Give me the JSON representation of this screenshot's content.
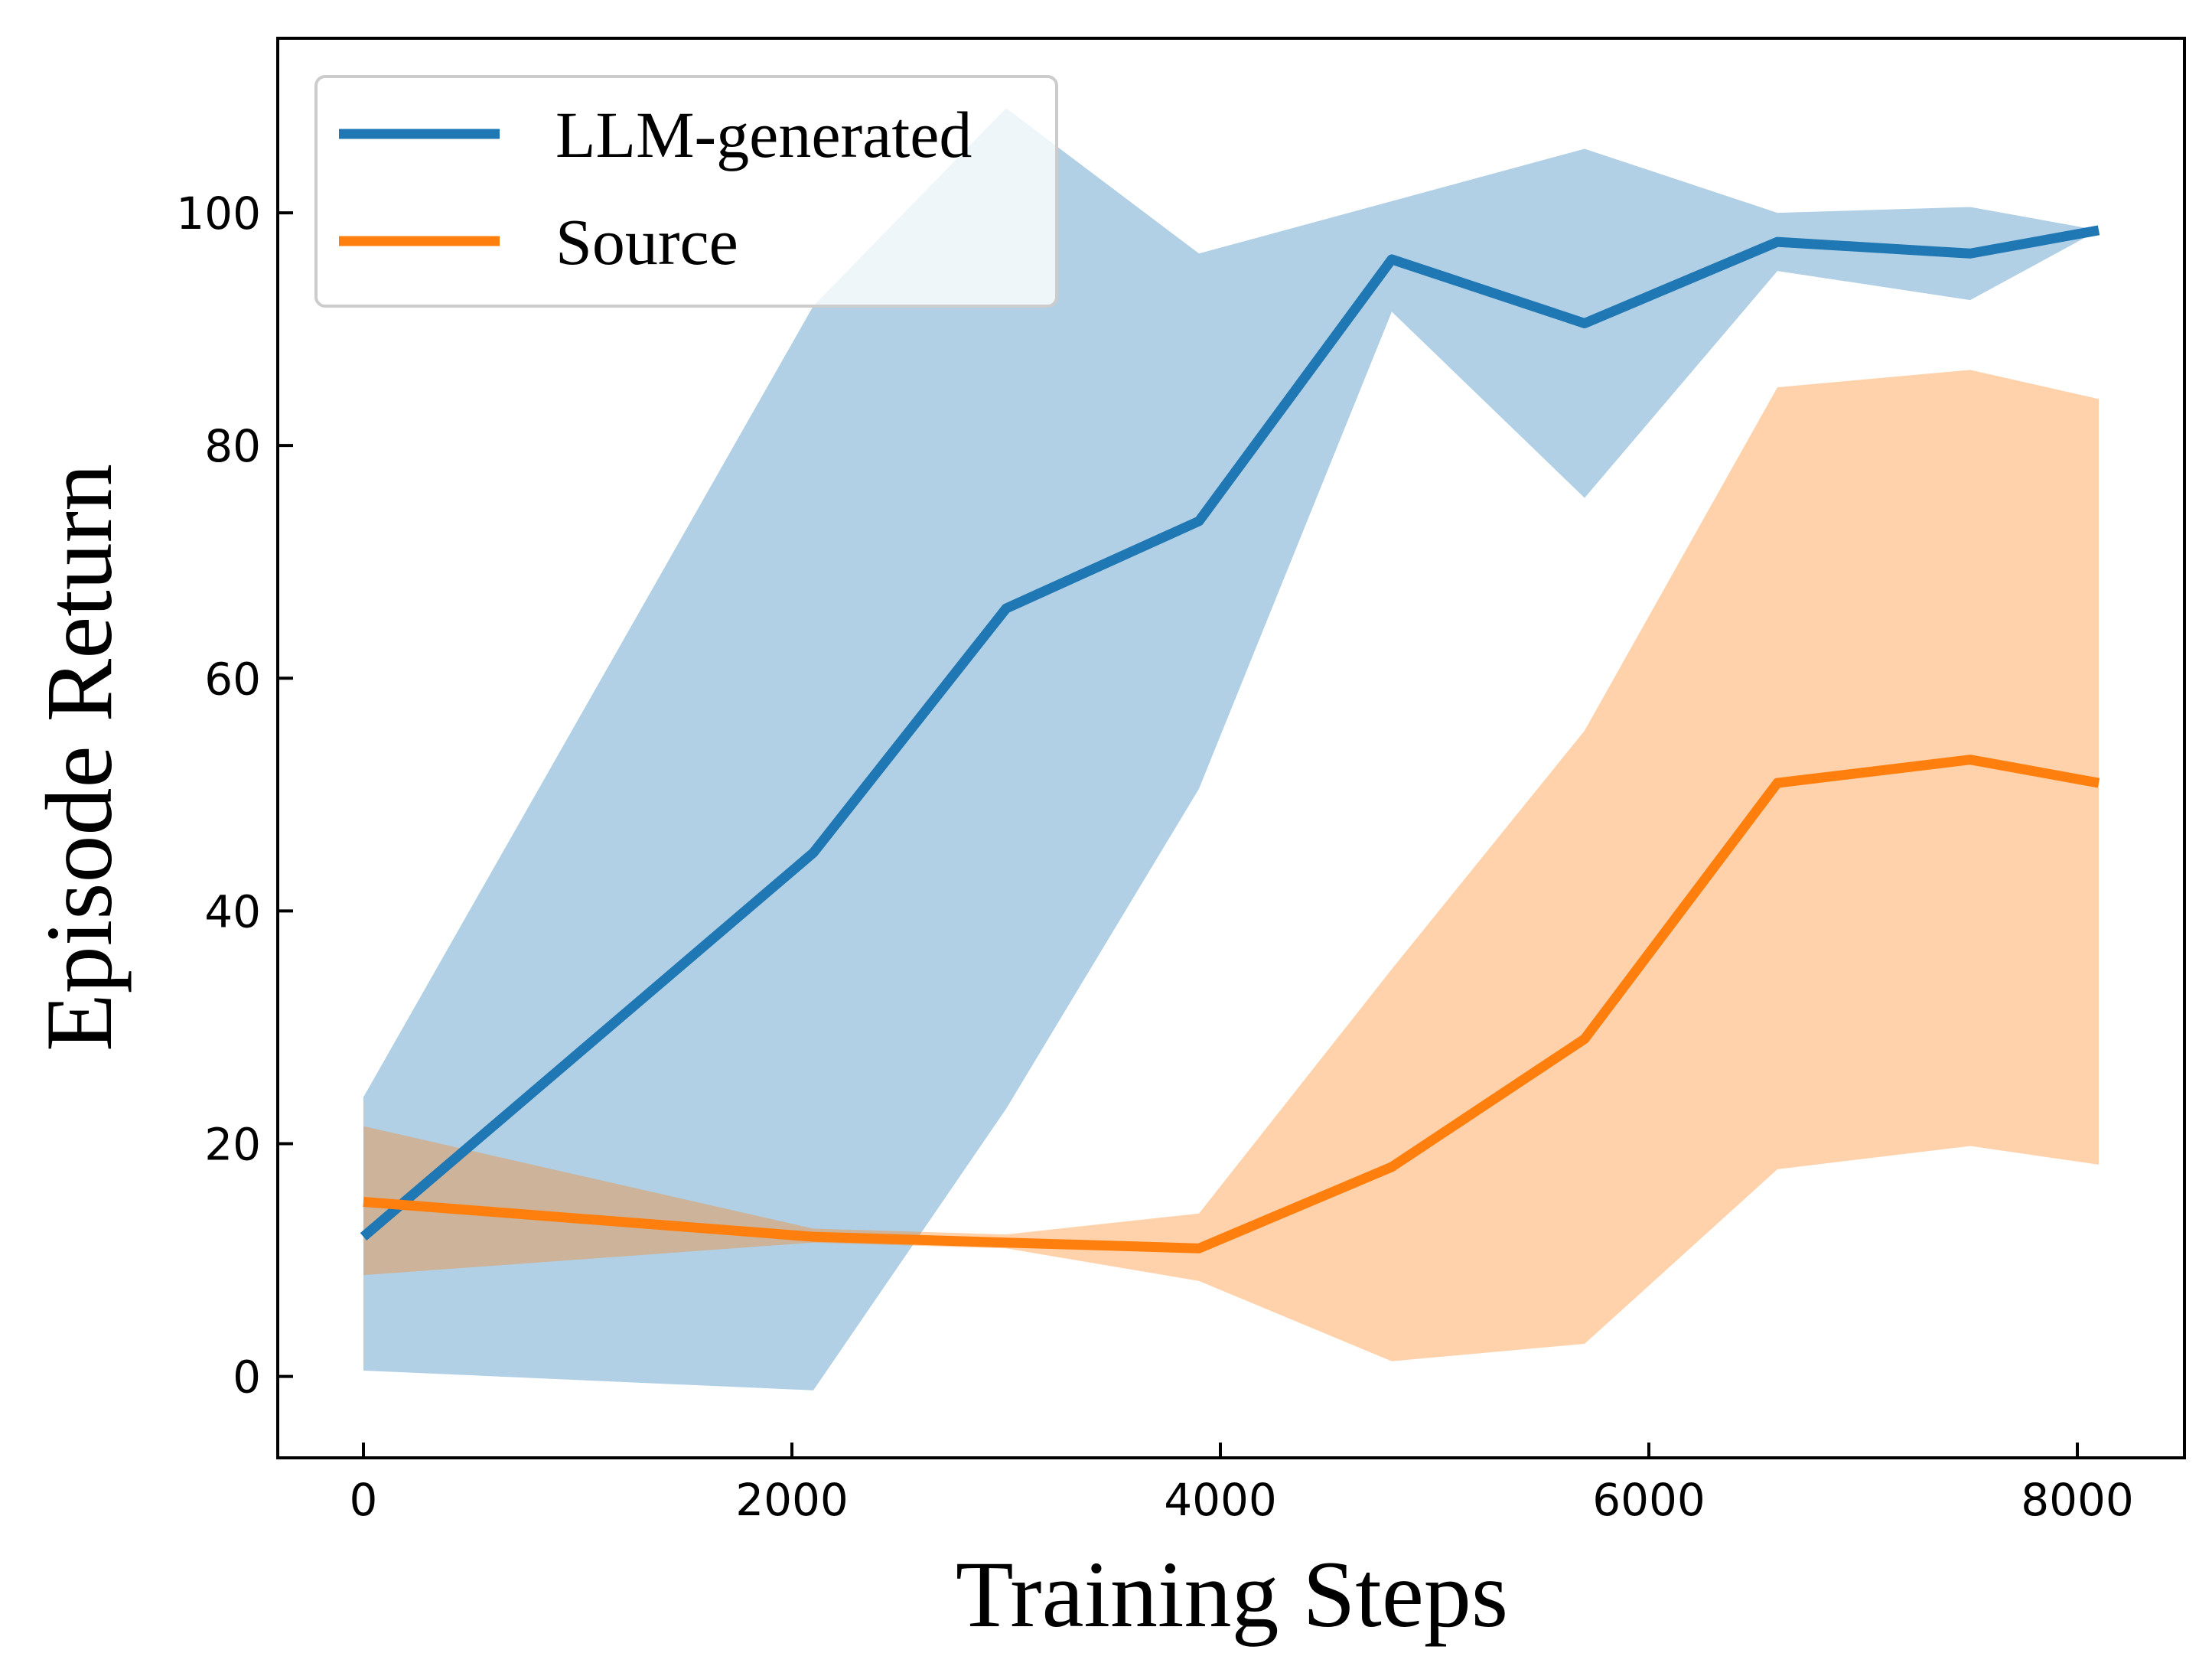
{
  "chart_data": {
    "type": "line",
    "title": "",
    "xlabel": "Training Steps",
    "ylabel": "Episode Return",
    "xlim": [
      -400,
      8500
    ],
    "ylim": [
      -7,
      115
    ],
    "xticks": [
      0,
      2000,
      4000,
      6000,
      8000
    ],
    "yticks": [
      0,
      20,
      40,
      60,
      80,
      100
    ],
    "grid": false,
    "legend_position": "top-left",
    "series": [
      {
        "name": "LLM-generated",
        "color": "#1f77b4",
        "x": [
          0,
          2100,
          3000,
          3900,
          4800,
          5700,
          6600,
          7500,
          8100
        ],
        "y": [
          12,
          45,
          66,
          73.5,
          96,
          90.5,
          97.5,
          96.5,
          98.5
        ],
        "lower": [
          0.5,
          -1.2,
          23,
          50.5,
          91.5,
          75.5,
          95,
          92.5,
          98.5
        ],
        "upper": [
          24,
          92,
          109,
          96.5,
          101,
          105.5,
          100,
          100.5,
          98.5
        ]
      },
      {
        "name": "Source",
        "color": "#ff7f0e",
        "x": [
          0,
          2100,
          3000,
          3900,
          4800,
          5700,
          6600,
          7500,
          8100
        ],
        "y": [
          15,
          12,
          11.5,
          11,
          18,
          29,
          51,
          53,
          51
        ],
        "lower": [
          8.7,
          11.5,
          11,
          8.2,
          1.3,
          2.8,
          17.8,
          19.8,
          18.2
        ],
        "upper": [
          21.5,
          12.7,
          12.2,
          14,
          35,
          55.5,
          85,
          86.5,
          84
        ]
      }
    ]
  }
}
